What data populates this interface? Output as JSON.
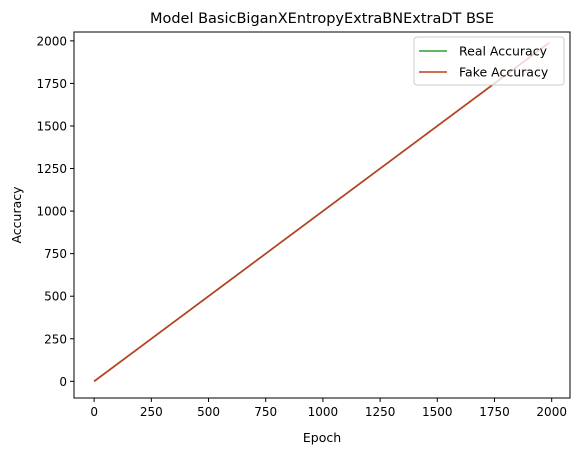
{
  "chart_data": {
    "type": "line",
    "title": "Model BasicBiganXEntropyExtraBNExtraDT BSE",
    "xlabel": "Epoch",
    "ylabel": "Accuracy",
    "xlim": [
      -88,
      2080
    ],
    "ylim": [
      -98,
      2052
    ],
    "xticks": [
      0,
      250,
      500,
      750,
      1000,
      1250,
      1500,
      1750,
      2000
    ],
    "yticks": [
      0,
      250,
      500,
      750,
      1000,
      1250,
      1500,
      1750,
      2000
    ],
    "grid": false,
    "legend_position": "top-right",
    "series": [
      {
        "name": "Real Accuracy",
        "color": "#2ca02c",
        "x": [
          0,
          1990
        ],
        "y": [
          0,
          1990
        ]
      },
      {
        "name": "Fake Accuracy",
        "color": "#c23b22",
        "x": [
          0,
          1990
        ],
        "y": [
          0,
          1990
        ]
      }
    ]
  }
}
